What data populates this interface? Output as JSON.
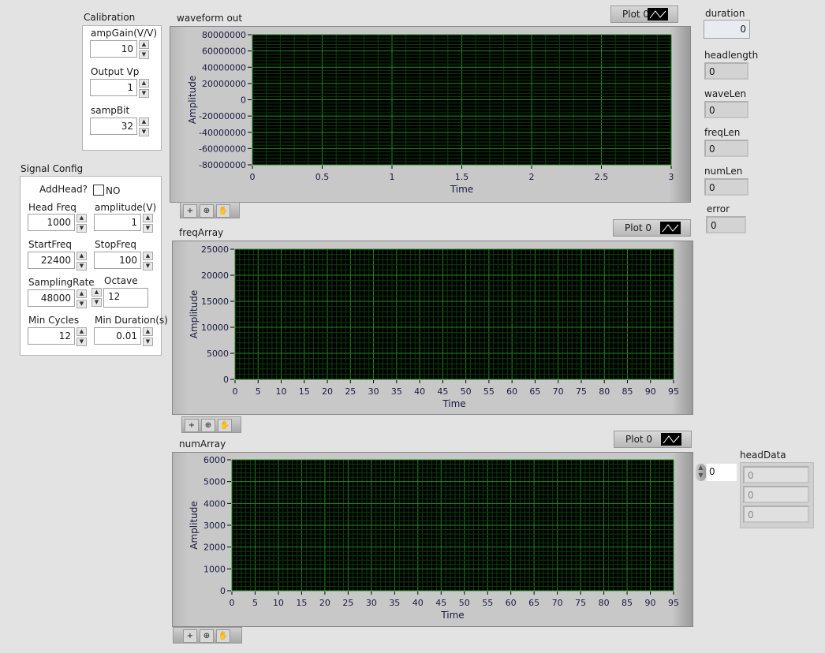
{
  "calibration": {
    "title": "Calibration",
    "amp_gain": {
      "label": "ampGain(V/V)",
      "value": "10"
    },
    "output_vp": {
      "label": "Output Vp",
      "value": "1"
    },
    "samp_bit": {
      "label": "sampBit",
      "value": "32"
    }
  },
  "signal_config": {
    "title": "Signal Config",
    "add_head": {
      "label": "AddHead?",
      "checked": false,
      "text": "NO"
    },
    "head_freq": {
      "label": "Head Freq",
      "value": "1000"
    },
    "amplitude": {
      "label": "amplitude(V)",
      "value": "1"
    },
    "start_freq": {
      "label": "StartFreq",
      "value": "22400"
    },
    "stop_freq": {
      "label": "StopFreq",
      "value": "100"
    },
    "sampling_rate": {
      "label": "SamplingRate",
      "value": "48000"
    },
    "octave": {
      "label": "Octave",
      "value": "12"
    },
    "min_cycles": {
      "label": "Min Cycles",
      "value": "12"
    },
    "min_duration": {
      "label": "Min Duration(s)",
      "value": "0.01"
    }
  },
  "indicators": {
    "duration": {
      "label": "duration",
      "value": "0"
    },
    "headlength": {
      "label": "headlength",
      "value": "0"
    },
    "wavelen": {
      "label": "waveLen",
      "value": "0"
    },
    "freqlen": {
      "label": "freqLen",
      "value": "0"
    },
    "numlen": {
      "label": "numLen",
      "value": "0"
    },
    "error": {
      "label": "error",
      "value": "0"
    }
  },
  "head_data": {
    "label": "headData",
    "index": "0",
    "values": [
      "0",
      "0",
      "0"
    ]
  },
  "colors": {
    "plot_bg": "#000000",
    "grid_major": "#1e8c1e",
    "grid_minor": "#0d3d0d",
    "panel": "#e3e3e3"
  },
  "chart_data": [
    {
      "type": "line",
      "title": "waveform out",
      "legend": "Plot 0",
      "xlabel": "Time",
      "ylabel": "Amplitude",
      "xlim": [
        0,
        3
      ],
      "ylim": [
        -80000000,
        80000000
      ],
      "xticks": [
        "0",
        "0.5",
        "1",
        "1.5",
        "2",
        "2.5",
        "3"
      ],
      "yticks": [
        "80000000",
        "60000000",
        "40000000",
        "20000000",
        "0",
        "-20000000",
        "-40000000",
        "-60000000",
        "-80000000"
      ],
      "grid": true,
      "series": []
    },
    {
      "type": "line",
      "title": "freqArray",
      "legend": "Plot 0",
      "xlabel": "Time",
      "ylabel": "Amplitude",
      "xlim": [
        0,
        95
      ],
      "ylim": [
        0,
        25000
      ],
      "xticks": [
        "0",
        "5",
        "10",
        "15",
        "20",
        "25",
        "30",
        "35",
        "40",
        "45",
        "50",
        "55",
        "60",
        "65",
        "70",
        "75",
        "80",
        "85",
        "90",
        "95"
      ],
      "yticks": [
        "25000",
        "20000",
        "15000",
        "10000",
        "5000",
        "0"
      ],
      "grid": true,
      "series": []
    },
    {
      "type": "line",
      "title": "numArray",
      "legend": "Plot 0",
      "xlabel": "Time",
      "ylabel": "Amplitude",
      "xlim": [
        0,
        95
      ],
      "ylim": [
        0,
        6000
      ],
      "xticks": [
        "0",
        "5",
        "10",
        "15",
        "20",
        "25",
        "30",
        "35",
        "40",
        "45",
        "50",
        "55",
        "60",
        "65",
        "70",
        "75",
        "80",
        "85",
        "90",
        "95"
      ],
      "yticks": [
        "6000",
        "5000",
        "4000",
        "3000",
        "2000",
        "1000",
        "0"
      ],
      "grid": true,
      "series": []
    }
  ]
}
